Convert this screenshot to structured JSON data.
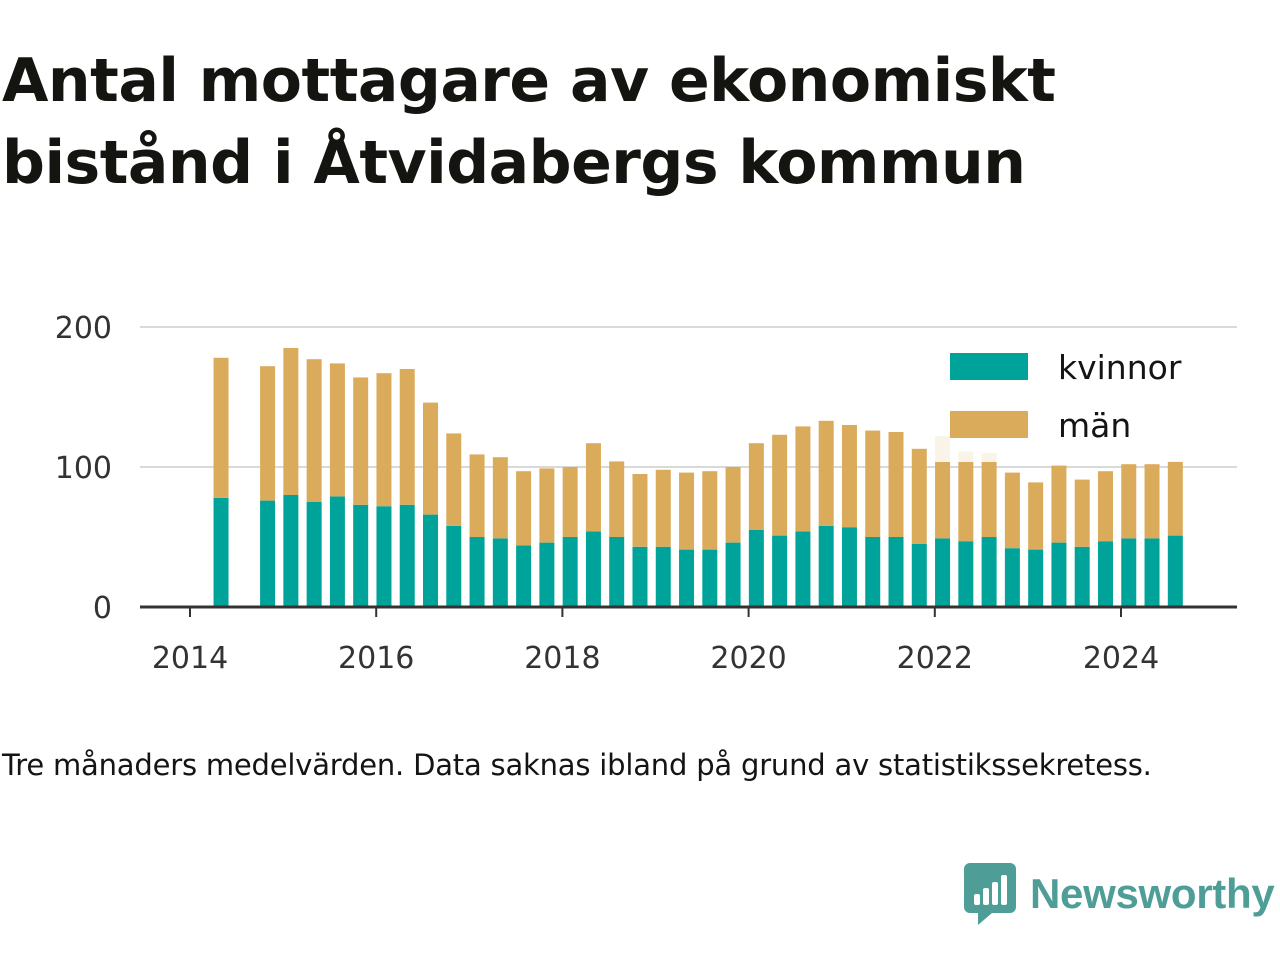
{
  "title": "Antal mottagare av ekonomiskt bistånd i Åtvidabergs kommun",
  "note": "Tre månaders medelvärden. Data saknas ibland på grund av statistikssekretess.",
  "brand": {
    "name": "Newsworthy",
    "icon": "newsworthy-logo-icon",
    "color": "#4e9e97"
  },
  "colors": {
    "kvinnor": "#00a39a",
    "man": "#dbab5c",
    "grid": "#d9d9d9",
    "axis": "#333333"
  },
  "chart_data": {
    "type": "bar",
    "stacked": true,
    "ylim": [
      0,
      200
    ],
    "yticks": [
      0,
      100,
      200
    ],
    "xticks": [
      "2014",
      "2016",
      "2018",
      "2020",
      "2022",
      "2024"
    ],
    "legend_position": "top-right",
    "grid": true,
    "x": [
      "2014-05",
      "2014-08",
      "2014-11",
      "2015-02",
      "2015-05",
      "2015-08",
      "2015-11",
      "2016-02",
      "2016-05",
      "2016-08",
      "2016-11",
      "2017-02",
      "2017-05",
      "2017-08",
      "2017-11",
      "2018-02",
      "2018-05",
      "2018-08",
      "2018-11",
      "2019-02",
      "2019-05",
      "2019-08",
      "2019-11",
      "2020-02",
      "2020-05",
      "2020-08",
      "2020-11",
      "2021-02",
      "2021-05",
      "2021-08",
      "2021-11",
      "2022-02",
      "2022-05",
      "2022-08",
      "2022-11",
      "2023-02",
      "2023-05",
      "2023-08",
      "2023-11",
      "2024-02",
      "2024-05",
      "2024-08"
    ],
    "series": [
      {
        "name": "kvinnor",
        "color": "#00a39a",
        "values": [
          78,
          null,
          76,
          80,
          75,
          79,
          73,
          72,
          73,
          66,
          58,
          50,
          49,
          44,
          46,
          50,
          54,
          50,
          43,
          43,
          41,
          41,
          46,
          55,
          51,
          54,
          58,
          57,
          50,
          50,
          45,
          49,
          47,
          50,
          42,
          41,
          46,
          43,
          47,
          49,
          49,
          51
        ]
      },
      {
        "name": "män",
        "color": "#dbab5c",
        "values": [
          100,
          null,
          96,
          105,
          102,
          95,
          91,
          95,
          97,
          80,
          66,
          59,
          58,
          53,
          53,
          50,
          63,
          54,
          52,
          55,
          55,
          56,
          54,
          62,
          72,
          75,
          75,
          73,
          76,
          75,
          68,
          73,
          64,
          60,
          54,
          48,
          55,
          48,
          50,
          53,
          53,
          53
        ]
      }
    ]
  }
}
